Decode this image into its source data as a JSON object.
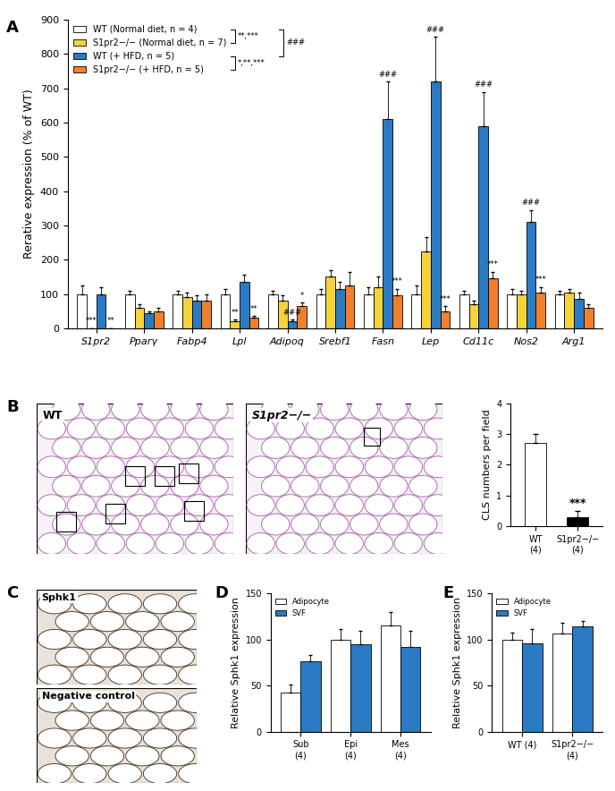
{
  "panel_labels": [
    "A",
    "B",
    "C",
    "D",
    "E"
  ],
  "images": [
    {
      "panel": "B",
      "label": "WT"
    },
    {
      "panel": "B",
      "label": "S1pr2−/−"
    },
    {
      "panel": "C",
      "label": "Sphk1"
    },
    {
      "panel": "C",
      "label": "Negative control"
    }
  ],
  "chart_data": [
    {
      "panel": "A",
      "type": "bar",
      "ylabel": "Rerative expression (% of WT)",
      "categories": [
        "S1pr2",
        "Pparγ",
        "Fabp4",
        "Lpl",
        "Adipoq",
        "Srebf1",
        "Fasn",
        "Lep",
        "Cd11c",
        "Nos2",
        "Arg1"
      ],
      "series": [
        {
          "name": "WT (Normal diet, n = 4)",
          "color": "#ffffff",
          "values": [
            100,
            100,
            100,
            100,
            100,
            100,
            100,
            100,
            100,
            100,
            100
          ],
          "errors": [
            25,
            10,
            10,
            15,
            10,
            15,
            20,
            25,
            10,
            15,
            10
          ],
          "annotations": [
            null,
            null,
            null,
            null,
            null,
            null,
            null,
            null,
            null,
            null,
            null
          ]
        },
        {
          "name": "S1pr2−/− (Normal diet, n = 7)",
          "color": "#f5d33a",
          "values": [
            0,
            60,
            90,
            20,
            80,
            150,
            120,
            225,
            70,
            100,
            105
          ],
          "errors": [
            0,
            10,
            15,
            5,
            15,
            20,
            30,
            40,
            10,
            10,
            10
          ],
          "annotations": [
            "***",
            null,
            null,
            "**",
            null,
            null,
            null,
            null,
            null,
            null,
            null
          ]
        },
        {
          "name": "WT (+ HFD, n = 5)",
          "color": "#2b7bc4",
          "values": [
            100,
            45,
            80,
            135,
            20,
            115,
            610,
            720,
            590,
            310,
            85
          ],
          "errors": [
            20,
            5,
            15,
            20,
            5,
            20,
            110,
            130,
            100,
            35,
            20
          ],
          "annotations": [
            null,
            null,
            null,
            null,
            "###",
            null,
            "###",
            "###",
            "###",
            "###",
            null
          ]
        },
        {
          "name": "S1pr2−/− (+ HFD, n = 5)",
          "color": "#f07f2e",
          "values": [
            0,
            50,
            80,
            30,
            65,
            125,
            95,
            50,
            145,
            105,
            60
          ],
          "errors": [
            0,
            10,
            20,
            5,
            10,
            40,
            20,
            15,
            20,
            15,
            10
          ],
          "annotations": [
            "**",
            null,
            null,
            "**",
            "*",
            null,
            "***",
            "***",
            "***",
            "***",
            null
          ]
        }
      ],
      "bracket_labels": [
        "**,***",
        "###",
        "*,**,***"
      ],
      "ylim": [
        0,
        900
      ],
      "yticks": [
        0,
        100,
        200,
        300,
        400,
        500,
        600,
        700,
        800,
        900
      ],
      "legend": "upper left"
    },
    {
      "panel": "B",
      "type": "bar",
      "ylabel": "CLS numbers per field",
      "categories": [
        "WT\n(4)",
        "S1pr2−/−\n(4)"
      ],
      "values": [
        2.7,
        0.3
      ],
      "errors": [
        0.3,
        0.2
      ],
      "colors": [
        "#ffffff",
        "#000000"
      ],
      "annotations": [
        null,
        "***"
      ],
      "ylim": [
        0,
        4
      ],
      "yticks": [
        0,
        1,
        2,
        3,
        4
      ]
    },
    {
      "panel": "D",
      "type": "bar",
      "ylabel": "Relative Sphk1 expression",
      "categories": [
        "Sub\n(4)",
        "Epi\n(4)",
        "Mes\n(4)"
      ],
      "series": [
        {
          "name": "Adipocyte",
          "color": "#ffffff",
          "values": [
            42,
            100,
            115
          ],
          "errors": [
            9,
            11,
            15
          ]
        },
        {
          "name": "SVF",
          "color": "#2b7bc4",
          "values": [
            76,
            95,
            92
          ],
          "errors": [
            7,
            14,
            17
          ]
        }
      ],
      "ylim": [
        0,
        150
      ],
      "yticks": [
        0,
        50,
        100,
        150
      ],
      "legend": "upper left"
    },
    {
      "panel": "E",
      "type": "bar",
      "ylabel": "Relative Sphk1 expression",
      "categories": [
        "WT (4)",
        "S1pr2−/−\n(4)"
      ],
      "series": [
        {
          "name": "Adipocyte",
          "color": "#ffffff",
          "values": [
            100,
            106
          ],
          "errors": [
            7,
            12
          ]
        },
        {
          "name": "SVF",
          "color": "#2b7bc4",
          "values": [
            96,
            114
          ],
          "errors": [
            15,
            6
          ]
        }
      ],
      "ylim": [
        0,
        150
      ],
      "yticks": [
        0,
        50,
        100,
        150
      ],
      "legend": "upper left"
    }
  ]
}
